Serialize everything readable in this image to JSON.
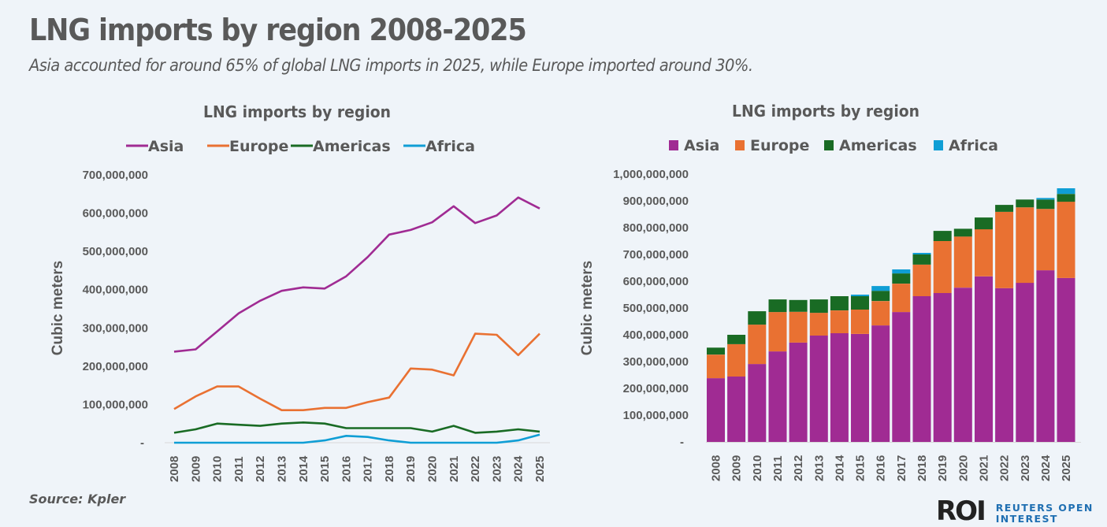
{
  "header": {
    "title": "LNG imports by region 2008-2025",
    "subtitle": "Asia accounted for around 65% of global LNG imports in 2025, while Europe imported around 30%."
  },
  "footer": {
    "source": "Source:  Kpler",
    "logo_mark": "ROI",
    "logo_line1": "REUTERS OPEN",
    "logo_line2": "INTEREST"
  },
  "colors": {
    "Asia": "#a02b93",
    "Europe": "#e97132",
    "Americas": "#196b24",
    "Africa": "#0f9ed5",
    "text": "#595959",
    "background": "#eff4f9",
    "axis_line": "#d9d9d9"
  },
  "chart_data": [
    {
      "type": "line",
      "title": "LNG imports by region",
      "xlabel": "",
      "ylabel": "Cubic meters",
      "ylim": [
        0,
        700000000
      ],
      "yticks": [
        0,
        100000000,
        200000000,
        300000000,
        400000000,
        500000000,
        600000000,
        700000000
      ],
      "ytick_labels": [
        "-",
        "100,000,000",
        "200,000,000",
        "300,000,000",
        "400,000,000",
        "500,000,000",
        "600,000,000",
        "700,000,000"
      ],
      "grid": false,
      "legend": "top",
      "categories": [
        "2008",
        "2009",
        "2010",
        "2011",
        "2012",
        "2013",
        "2014",
        "2015",
        "2016",
        "2017",
        "2018",
        "2019",
        "2020",
        "2021",
        "2022",
        "2023",
        "2024",
        "2025"
      ],
      "series": [
        {
          "name": "Asia",
          "values": [
            238000000,
            244000000,
            291000000,
            338000000,
            371000000,
            397000000,
            406000000,
            403000000,
            435000000,
            485000000,
            544000000,
            556000000,
            576000000,
            618000000,
            574000000,
            594000000,
            641000000,
            612000000
          ]
        },
        {
          "name": "Europe",
          "values": [
            88000000,
            121000000,
            147000000,
            147000000,
            115000000,
            85000000,
            85000000,
            91000000,
            91000000,
            106000000,
            118000000,
            194000000,
            191000000,
            176000000,
            285000000,
            282000000,
            229000000,
            285000000
          ]
        },
        {
          "name": "Americas",
          "values": [
            26000000,
            35000000,
            50000000,
            47000000,
            44000000,
            50000000,
            53000000,
            50000000,
            38000000,
            38000000,
            38000000,
            38000000,
            29000000,
            44000000,
            26000000,
            29000000,
            35000000,
            29000000
          ]
        },
        {
          "name": "Africa",
          "values": [
            0,
            0,
            0,
            0,
            0,
            0,
            0,
            6000000,
            18000000,
            15000000,
            6000000,
            0,
            0,
            0,
            0,
            0,
            6000000,
            21000000
          ]
        }
      ]
    },
    {
      "type": "bar",
      "stacked": true,
      "title": "LNG imports by region",
      "xlabel": "",
      "ylabel": "Cubic meters",
      "ylim": [
        0,
        1000000000
      ],
      "yticks": [
        0,
        100000000,
        200000000,
        300000000,
        400000000,
        500000000,
        600000000,
        700000000,
        800000000,
        900000000,
        1000000000
      ],
      "ytick_labels": [
        "-",
        "100,000,000",
        "200,000,000",
        "300,000,000",
        "400,000,000",
        "500,000,000",
        "600,000,000",
        "700,000,000",
        "800,000,000",
        "900,000,000",
        "1,000,000,000"
      ],
      "grid": false,
      "legend": "top",
      "categories": [
        "2008",
        "2009",
        "2010",
        "2011",
        "2012",
        "2013",
        "2014",
        "2015",
        "2016",
        "2017",
        "2018",
        "2019",
        "2020",
        "2021",
        "2022",
        "2023",
        "2024",
        "2025"
      ],
      "series": [
        {
          "name": "Asia",
          "values": [
            238000000,
            244000000,
            291000000,
            338000000,
            371000000,
            397000000,
            406000000,
            403000000,
            435000000,
            485000000,
            544000000,
            556000000,
            576000000,
            618000000,
            574000000,
            594000000,
            641000000,
            612000000
          ]
        },
        {
          "name": "Europe",
          "values": [
            88000000,
            121000000,
            147000000,
            147000000,
            115000000,
            85000000,
            85000000,
            91000000,
            91000000,
            106000000,
            118000000,
            194000000,
            191000000,
            176000000,
            285000000,
            282000000,
            229000000,
            285000000
          ]
        },
        {
          "name": "Americas",
          "values": [
            26000000,
            35000000,
            50000000,
            47000000,
            44000000,
            50000000,
            53000000,
            50000000,
            38000000,
            38000000,
            38000000,
            38000000,
            29000000,
            44000000,
            26000000,
            29000000,
            35000000,
            29000000
          ]
        },
        {
          "name": "Africa",
          "values": [
            0,
            0,
            0,
            0,
            0,
            0,
            0,
            6000000,
            18000000,
            15000000,
            6000000,
            0,
            0,
            0,
            0,
            0,
            6000000,
            21000000
          ]
        }
      ]
    }
  ]
}
